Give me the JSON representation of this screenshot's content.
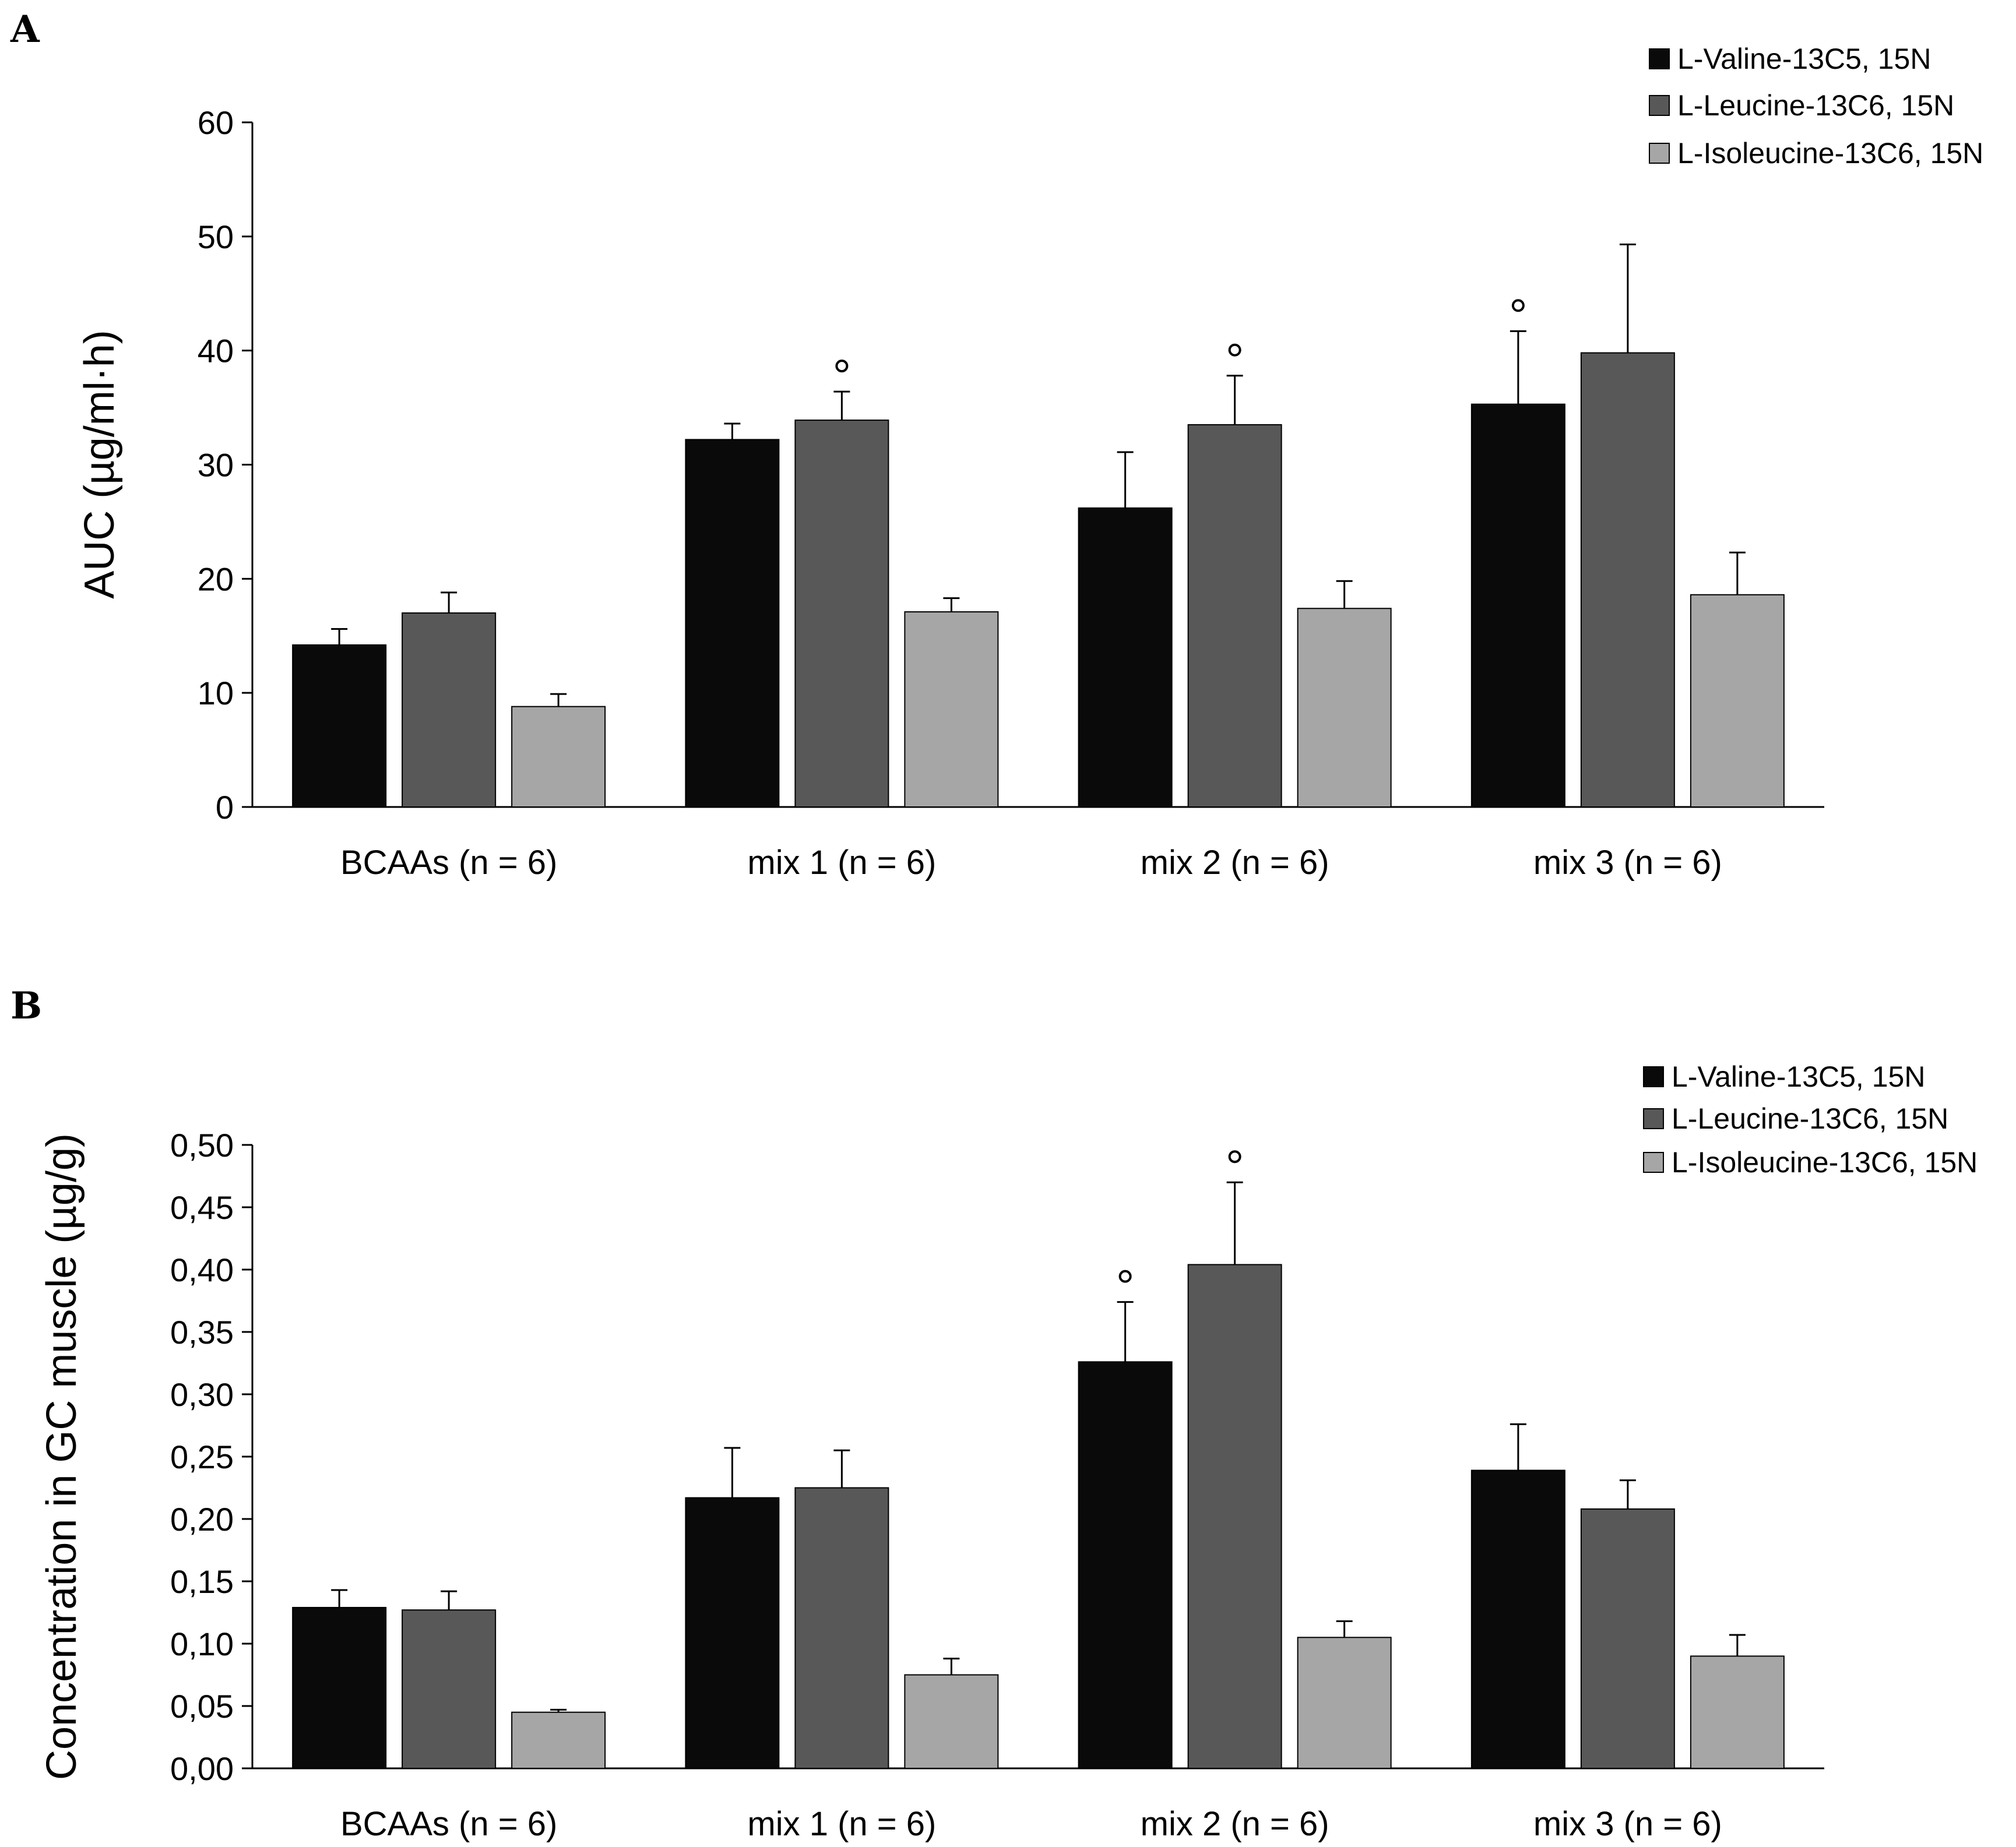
{
  "chart_data": [
    {
      "type": "bar",
      "panel": "A",
      "title": "",
      "xlabel": "",
      "ylabel": "AUC (µg/ml·h)",
      "ylim": [
        0,
        60
      ],
      "yticks": [
        0,
        10,
        20,
        30,
        40,
        50,
        60
      ],
      "ytick_labels": [
        "0",
        "10",
        "20",
        "30",
        "40",
        "50",
        "60"
      ],
      "categories": [
        "BCAAs (n = 6)",
        "mix 1 (n = 6)",
        "mix 2 (n = 6)",
        "mix 3 (n = 6)"
      ],
      "legend_position": "top-right",
      "series": [
        {
          "name": "L-Valine-13C5, 15N",
          "color": "#0a0a0a",
          "values": [
            14.2,
            32.2,
            26.2,
            35.3
          ],
          "errors": [
            1.4,
            1.4,
            4.9,
            6.4
          ],
          "significant": [
            false,
            false,
            false,
            true
          ]
        },
        {
          "name": "L-Leucine-13C6, 15N",
          "color": "#585858",
          "values": [
            17.0,
            33.9,
            33.5,
            39.8
          ],
          "errors": [
            1.8,
            2.5,
            4.3,
            9.5
          ],
          "significant": [
            false,
            true,
            true,
            false
          ]
        },
        {
          "name": "L-Isoleucine-13C6, 15N",
          "color": "#a6a6a6",
          "values": [
            8.8,
            17.1,
            17.4,
            18.6
          ],
          "errors": [
            1.1,
            1.2,
            2.4,
            3.7
          ],
          "significant": [
            false,
            false,
            false,
            false
          ]
        }
      ]
    },
    {
      "type": "bar",
      "panel": "B",
      "title": "",
      "xlabel": "",
      "ylabel": "Concentration in GC muscle (µg/g)",
      "ylim": [
        0,
        0.5
      ],
      "yticks": [
        0,
        0.05,
        0.1,
        0.15,
        0.2,
        0.25,
        0.3,
        0.35,
        0.4,
        0.45,
        0.5
      ],
      "ytick_labels": [
        "0,00",
        "0,05",
        "0,10",
        "0,15",
        "0,20",
        "0,25",
        "0,30",
        "0,35",
        "0,40",
        "0,45",
        "0,50"
      ],
      "categories": [
        "BCAAs (n = 6)",
        "mix 1 (n = 6)",
        "mix 2 (n = 6)",
        "mix 3 (n = 6)"
      ],
      "legend_position": "top-right",
      "series": [
        {
          "name": "L-Valine-13C5, 15N",
          "color": "#0a0a0a",
          "values": [
            0.129,
            0.217,
            0.326,
            0.239
          ],
          "errors": [
            0.014,
            0.04,
            0.048,
            0.037
          ],
          "significant": [
            false,
            false,
            true,
            false
          ]
        },
        {
          "name": "L-Leucine-13C6, 15N",
          "color": "#585858",
          "values": [
            0.127,
            0.225,
            0.404,
            0.208
          ],
          "errors": [
            0.015,
            0.03,
            0.066,
            0.023
          ],
          "significant": [
            false,
            false,
            true,
            false
          ]
        },
        {
          "name": "L-Isoleucine-13C6, 15N",
          "color": "#a6a6a6",
          "values": [
            0.045,
            0.075,
            0.105,
            0.09
          ],
          "errors": [
            0.002,
            0.013,
            0.013,
            0.017
          ],
          "significant": [
            false,
            false,
            false,
            false
          ]
        }
      ]
    }
  ],
  "panels": {
    "a_label": "A",
    "b_label": "B"
  }
}
